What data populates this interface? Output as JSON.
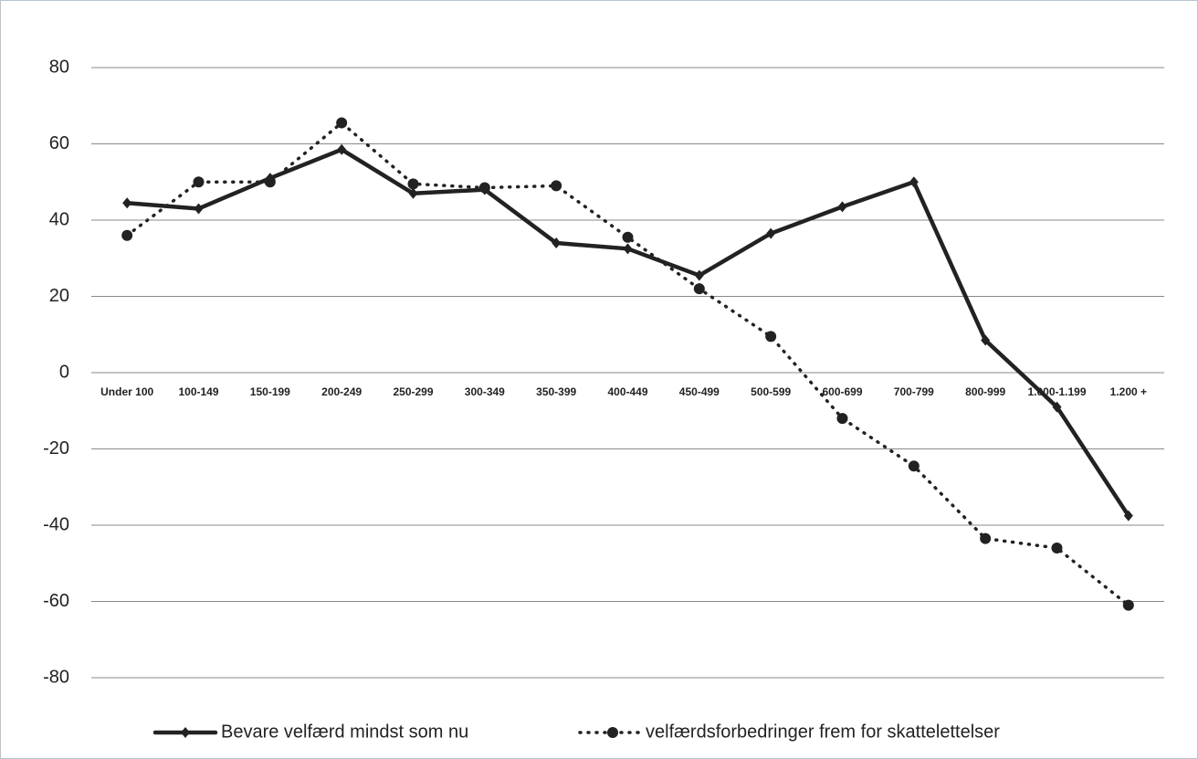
{
  "chart_data": {
    "type": "line",
    "categories": [
      "Under 100",
      "100-149",
      "150-199",
      "200-249",
      "250-299",
      "300-349",
      "350-399",
      "400-449",
      "450-499",
      "500-599",
      "600-699",
      "700-799",
      "800-999",
      "1.000-1.199",
      "1.200 +"
    ],
    "series": [
      {
        "name": "Bevare velfærd mindst som nu",
        "color": "#222222",
        "style": "solid",
        "marker": "diamond",
        "values": [
          44.5,
          43,
          51,
          58.5,
          47,
          48,
          34,
          32.5,
          25.5,
          36.5,
          43.5,
          50,
          8.5,
          -9,
          -37.5
        ]
      },
      {
        "name": "velfærdsforbedringer  frem for skattelettelser",
        "color": "#222222",
        "style": "dotted",
        "marker": "circle",
        "values": [
          36,
          50,
          50,
          65.5,
          49.5,
          48.5,
          49,
          35.5,
          22,
          9.5,
          -12,
          -24.5,
          -43.5,
          -46,
          -61
        ]
      }
    ],
    "ylim": [
      -80,
      80
    ],
    "yticks": [
      -80,
      -60,
      -40,
      -20,
      0,
      20,
      40,
      60,
      80
    ],
    "grid": true
  }
}
